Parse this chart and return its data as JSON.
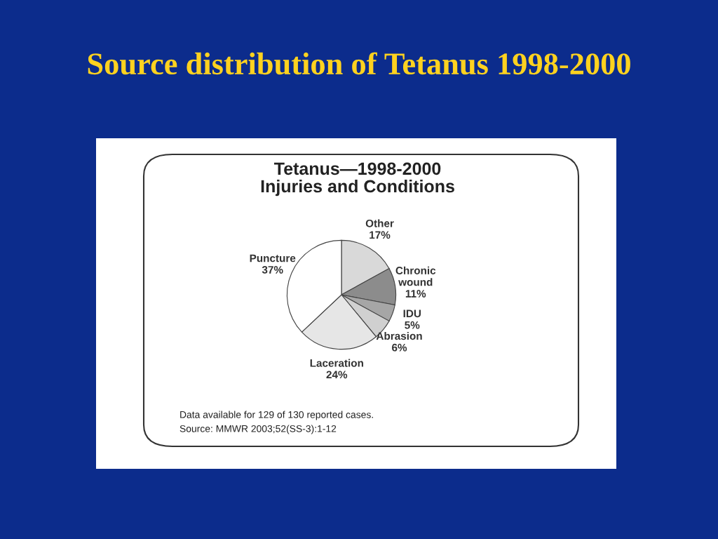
{
  "chart_data": {
    "type": "pie",
    "title": "Source distribution of Tetanus 1998-2000",
    "subtitle": "Tetanus—1998-2000\nInjuries and Conditions",
    "categories": [
      "Other",
      "Chronic\nwound",
      "IDU",
      "Abrasion",
      "Laceration",
      "Puncture"
    ],
    "values": [
      17,
      11,
      5,
      6,
      24,
      37
    ],
    "value_labels": [
      "17%",
      "11%",
      "5%",
      "6%",
      "24%",
      "37%"
    ],
    "colors": [
      "#d9d9d9",
      "#8c8c8c",
      "#a6a6a6",
      "#d0d0d0",
      "#e6e6e6",
      "#ffffff"
    ],
    "annotations": [
      "Data available for 129 of 130 reported cases.",
      "Source: MMWR 2003;52(SS-3):1-12"
    ]
  }
}
